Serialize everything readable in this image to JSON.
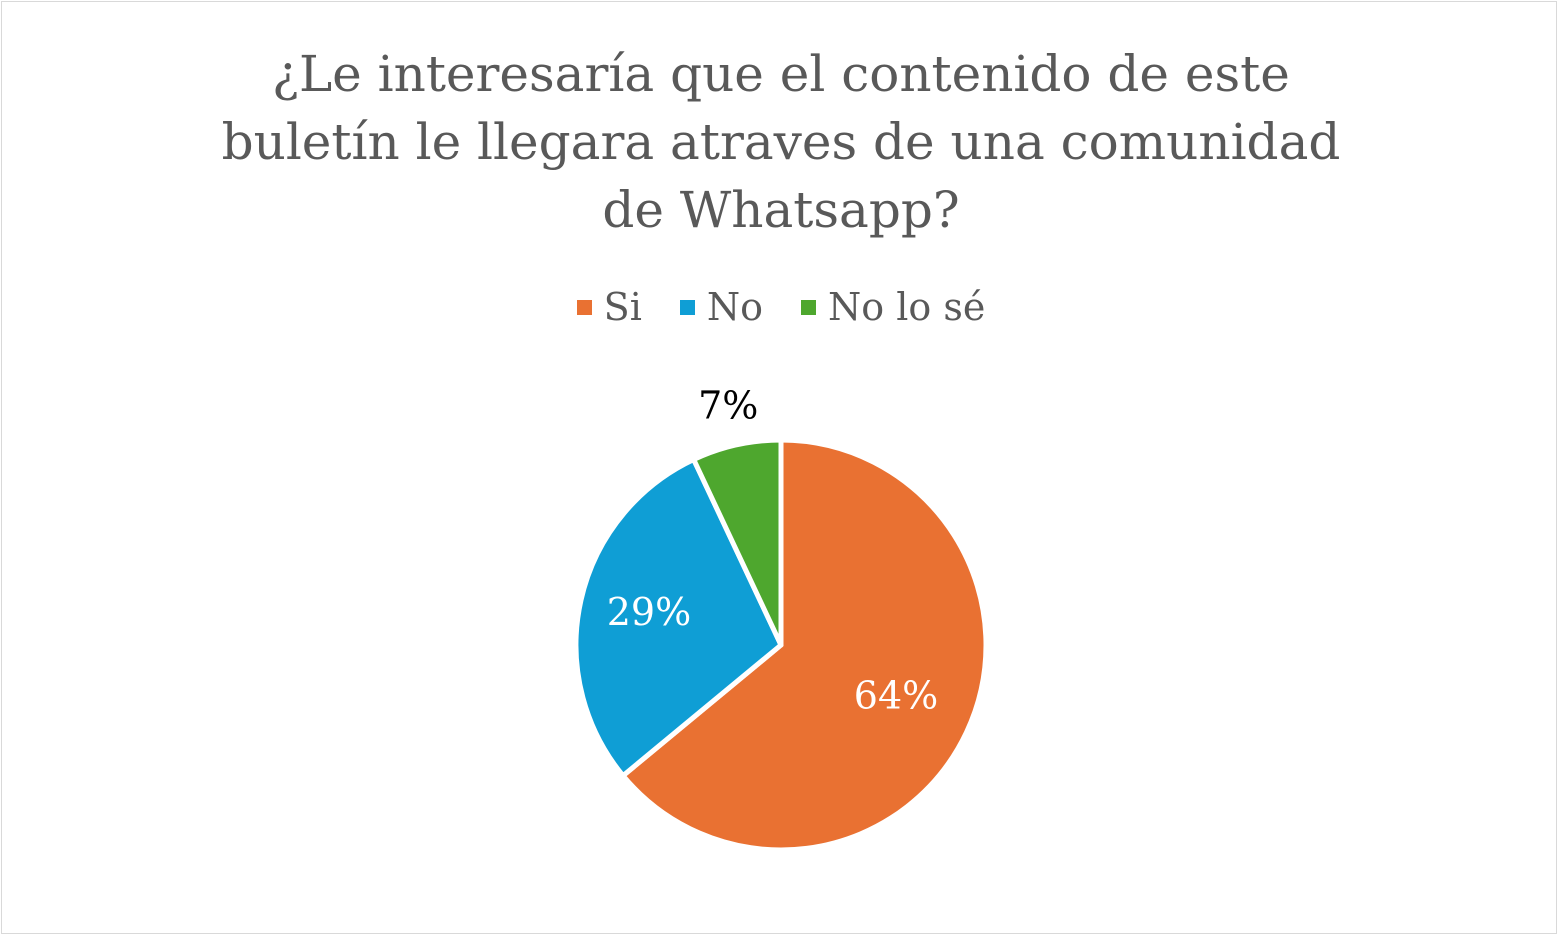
{
  "chart_data": {
    "type": "pie",
    "title": "¿Le interesaría que el contenido de este buletín le llegara atraves de una comunidad de Whatsapp?",
    "title_lines": [
      "¿Le interesaría que el contenido de este",
      "buletín le llegara atraves de una comunidad",
      "de Whatsapp?"
    ],
    "categories": [
      "Si",
      "No",
      "No lo sé"
    ],
    "values": [
      64,
      29,
      7
    ],
    "data_labels": [
      "64%",
      "29%",
      "7%"
    ],
    "colors": [
      "#E97132",
      "#0F9ED5",
      "#4EA72E"
    ],
    "legend_position": "top"
  }
}
